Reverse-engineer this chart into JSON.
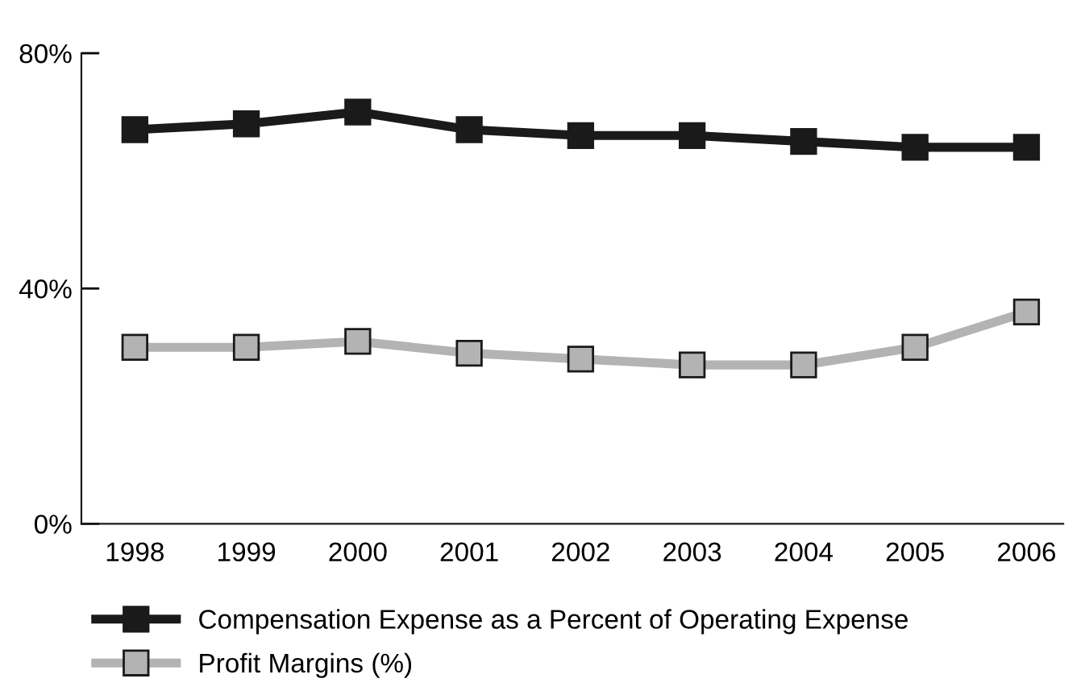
{
  "chart_data": {
    "type": "line",
    "categories": [
      "1998",
      "1999",
      "2000",
      "2001",
      "2002",
      "2003",
      "2004",
      "2005",
      "2006"
    ],
    "series": [
      {
        "name": "Compensation Expense as a Percent of Operating Expense",
        "color": "#1a1a1a",
        "values": [
          67,
          68,
          70,
          67,
          66,
          66,
          65,
          64,
          64
        ]
      },
      {
        "name": "Profit Margins (%)",
        "color": "#b3b3b3",
        "values": [
          30,
          30,
          31,
          29,
          28,
          27,
          27,
          30,
          36
        ]
      }
    ],
    "ylim": [
      0,
      80
    ],
    "yticks": [
      {
        "value": 0,
        "label": "0%"
      },
      {
        "value": 40,
        "label": "40%"
      },
      {
        "value": 80,
        "label": "80%"
      }
    ],
    "marker": "square",
    "line_style": "solid",
    "grid": false,
    "legend": "bottom"
  }
}
